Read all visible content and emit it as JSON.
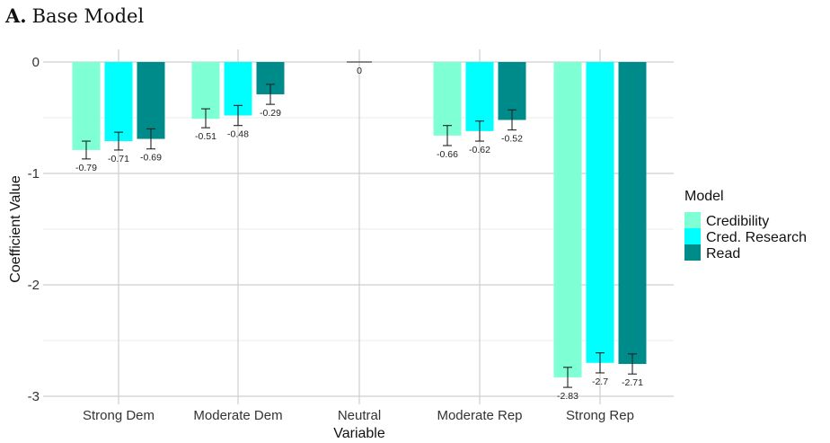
{
  "panel": {
    "letter": "A.",
    "title": "Base Model"
  },
  "chart_data": {
    "type": "bar",
    "xlabel": "Variable",
    "ylabel": "Coefficient Value",
    "ylim": [
      -3.05,
      0.05
    ],
    "yticks": [
      0,
      -1,
      -2,
      -3
    ],
    "grid": true,
    "legend_position": "right",
    "legend_title": "Model",
    "categories": [
      "Strong Dem",
      "Moderate Dem",
      "Neutral",
      "Moderate Rep",
      "Strong Rep"
    ],
    "series": [
      {
        "name": "Credibility",
        "color": "#7fffd4",
        "values": [
          -0.79,
          -0.51,
          0,
          -0.66,
          -2.83
        ],
        "labels": [
          "-0.79",
          "-0.51",
          "0",
          "-0.66",
          "-2.83"
        ],
        "err_low": [
          -0.87,
          -0.59,
          0,
          -0.75,
          -2.92
        ],
        "err_high": [
          -0.71,
          -0.42,
          0,
          -0.57,
          -2.74
        ]
      },
      {
        "name": "Cred. Research",
        "color": "#00ffff",
        "values": [
          -0.71,
          -0.48,
          null,
          -0.62,
          -2.7
        ],
        "labels": [
          "-0.71",
          "-0.48",
          "",
          "-0.62",
          "-2.7"
        ],
        "err_low": [
          -0.79,
          -0.57,
          null,
          -0.71,
          -2.79
        ],
        "err_high": [
          -0.63,
          -0.39,
          null,
          -0.53,
          -2.61
        ]
      },
      {
        "name": "Read",
        "color": "#008b8b",
        "values": [
          -0.69,
          -0.29,
          null,
          -0.52,
          -2.71
        ],
        "labels": [
          "-0.69",
          "-0.29",
          "",
          "-0.52",
          "-2.71"
        ],
        "err_low": [
          -0.78,
          -0.38,
          null,
          -0.61,
          -2.8
        ],
        "err_high": [
          -0.6,
          -0.2,
          null,
          -0.43,
          -2.62
        ]
      }
    ]
  }
}
